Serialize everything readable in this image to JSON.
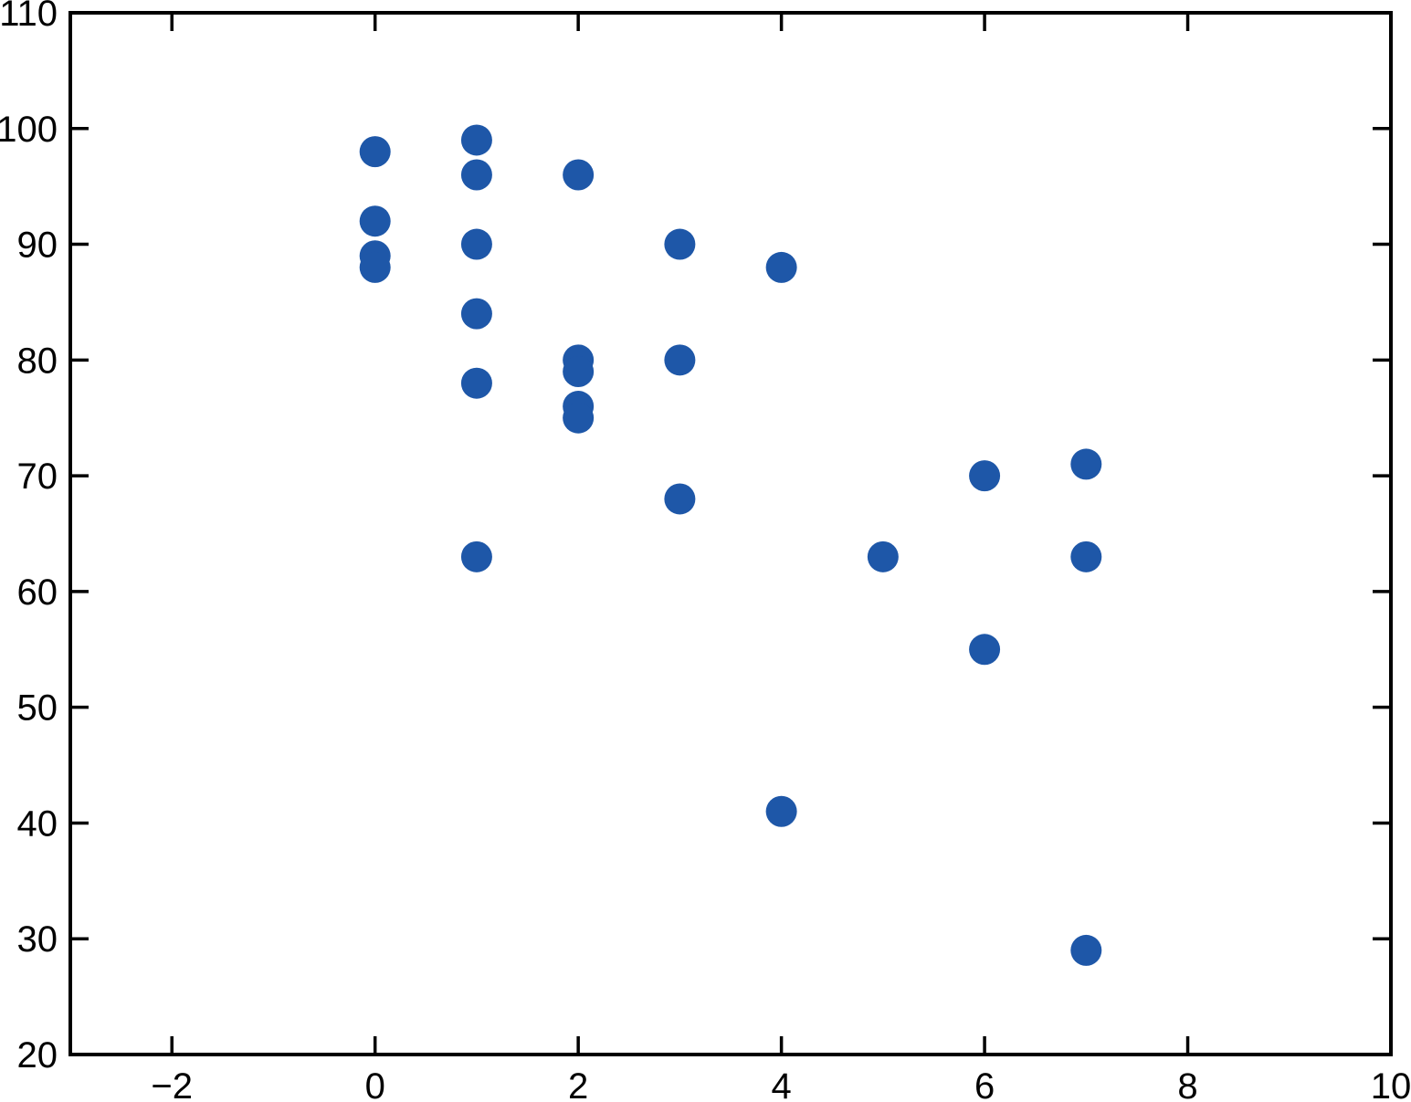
{
  "figure": {
    "background_color": "#ffffff",
    "axis_color": "#000000",
    "label_color": "#000000"
  },
  "chart_data": {
    "type": "scatter",
    "title": "",
    "xlabel": "",
    "ylabel": "",
    "xlim": [
      -3,
      10
    ],
    "ylim": [
      20,
      110
    ],
    "grid": false,
    "legend": null,
    "box": true,
    "marker": {
      "shape": "circle",
      "radius_px": 17,
      "color": "#1e57a8"
    },
    "x_ticks": [
      {
        "value": -2,
        "label": "−2"
      },
      {
        "value": 0,
        "label": "0"
      },
      {
        "value": 2,
        "label": "2"
      },
      {
        "value": 4,
        "label": "4"
      },
      {
        "value": 6,
        "label": "6"
      },
      {
        "value": 8,
        "label": "8"
      },
      {
        "value": 10,
        "label": "10"
      }
    ],
    "y_ticks": [
      {
        "value": 20,
        "label": "20"
      },
      {
        "value": 30,
        "label": "30"
      },
      {
        "value": 40,
        "label": "40"
      },
      {
        "value": 50,
        "label": "50"
      },
      {
        "value": 60,
        "label": "60"
      },
      {
        "value": 70,
        "label": "70"
      },
      {
        "value": 80,
        "label": "80"
      },
      {
        "value": 90,
        "label": "90"
      },
      {
        "value": 100,
        "label": "100"
      },
      {
        "value": 110,
        "label": "110"
      }
    ],
    "points": [
      {
        "x": 0,
        "y": 98
      },
      {
        "x": 0,
        "y": 92
      },
      {
        "x": 0,
        "y": 89
      },
      {
        "x": 0,
        "y": 88
      },
      {
        "x": 1,
        "y": 99
      },
      {
        "x": 1,
        "y": 96
      },
      {
        "x": 1,
        "y": 90
      },
      {
        "x": 1,
        "y": 84
      },
      {
        "x": 1,
        "y": 78
      },
      {
        "x": 1,
        "y": 63
      },
      {
        "x": 2,
        "y": 96
      },
      {
        "x": 2,
        "y": 80
      },
      {
        "x": 2,
        "y": 79
      },
      {
        "x": 2,
        "y": 76
      },
      {
        "x": 2,
        "y": 75
      },
      {
        "x": 3,
        "y": 90
      },
      {
        "x": 3,
        "y": 80
      },
      {
        "x": 3,
        "y": 68
      },
      {
        "x": 4,
        "y": 88
      },
      {
        "x": 4,
        "y": 41
      },
      {
        "x": 5,
        "y": 63
      },
      {
        "x": 6,
        "y": 70
      },
      {
        "x": 6,
        "y": 55
      },
      {
        "x": 7,
        "y": 71
      },
      {
        "x": 7,
        "y": 63
      },
      {
        "x": 7,
        "y": 29
      }
    ]
  }
}
